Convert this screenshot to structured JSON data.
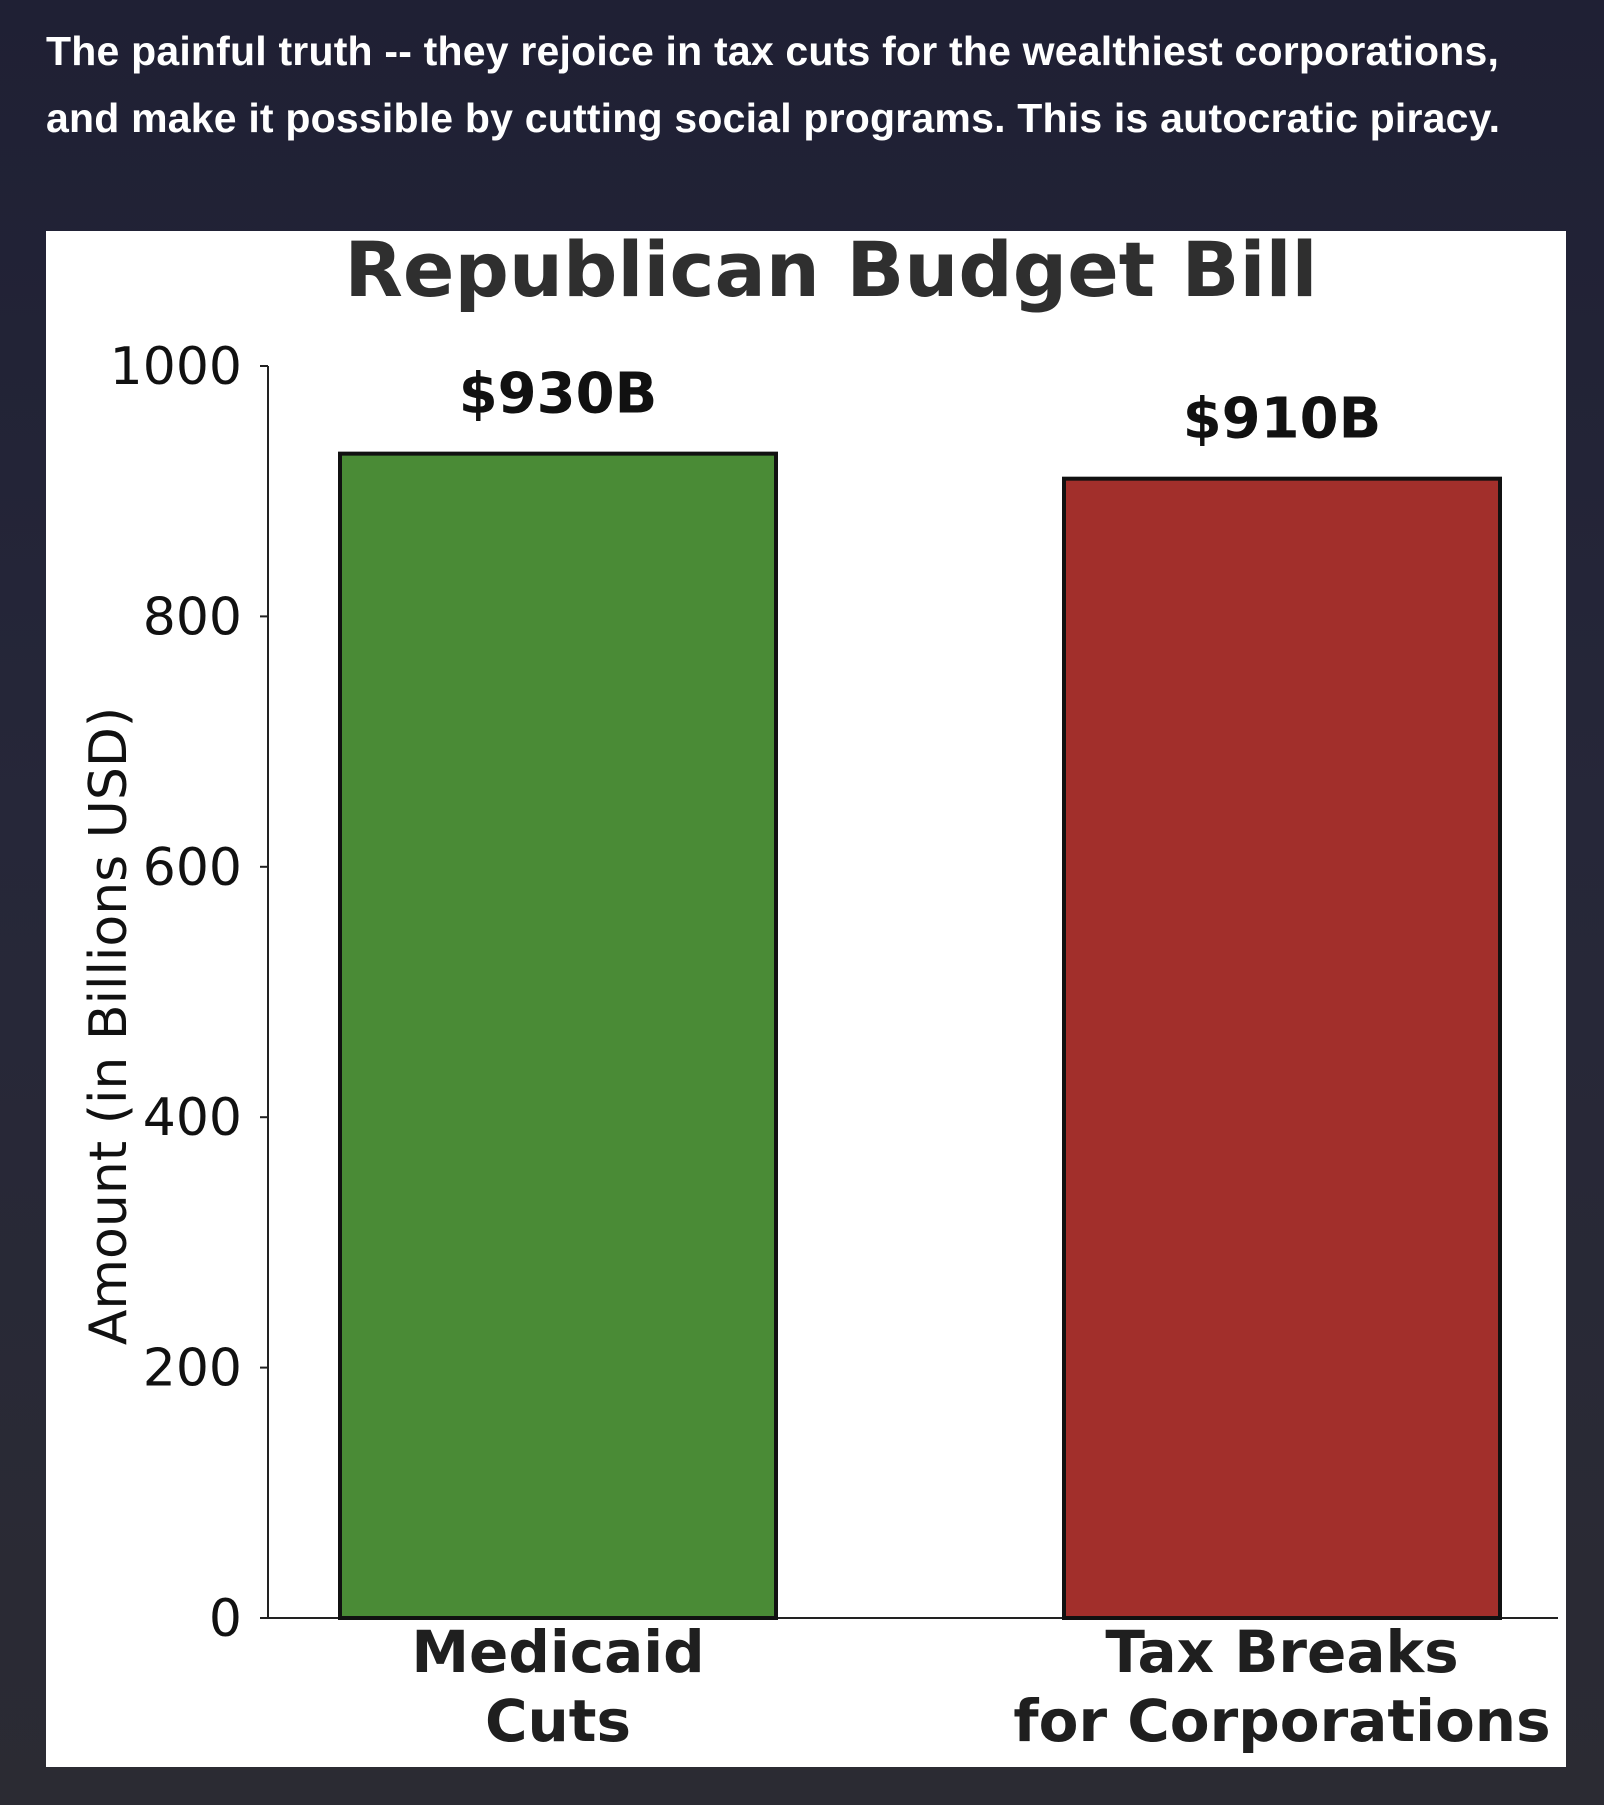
{
  "post": {
    "text": "The painful truth -- they rejoice in tax cuts for the wealthiest corporations, and make it possible by cutting social programs. This is autocratic piracy."
  },
  "colors": {
    "background": "#232437",
    "card": "#ffffff",
    "green_bar": "#4a8b36",
    "red_bar": "#a22f2b",
    "outline": "#111111"
  },
  "chart_data": {
    "type": "bar",
    "title": "Republican Budget Bill",
    "xlabel": "",
    "ylabel": "Amount (in Billions USD)",
    "ylim": [
      0,
      1000
    ],
    "yticks": [
      0,
      200,
      400,
      600,
      800,
      1000
    ],
    "grid": false,
    "legend": "none",
    "categories": [
      [
        "Medicaid",
        "Cuts"
      ],
      [
        "Tax Breaks",
        "for Corporations"
      ]
    ],
    "values": [
      930,
      910
    ],
    "data_labels": [
      "$930B",
      "$910B"
    ],
    "colors": [
      "#4a8b36",
      "#a22f2b"
    ]
  }
}
